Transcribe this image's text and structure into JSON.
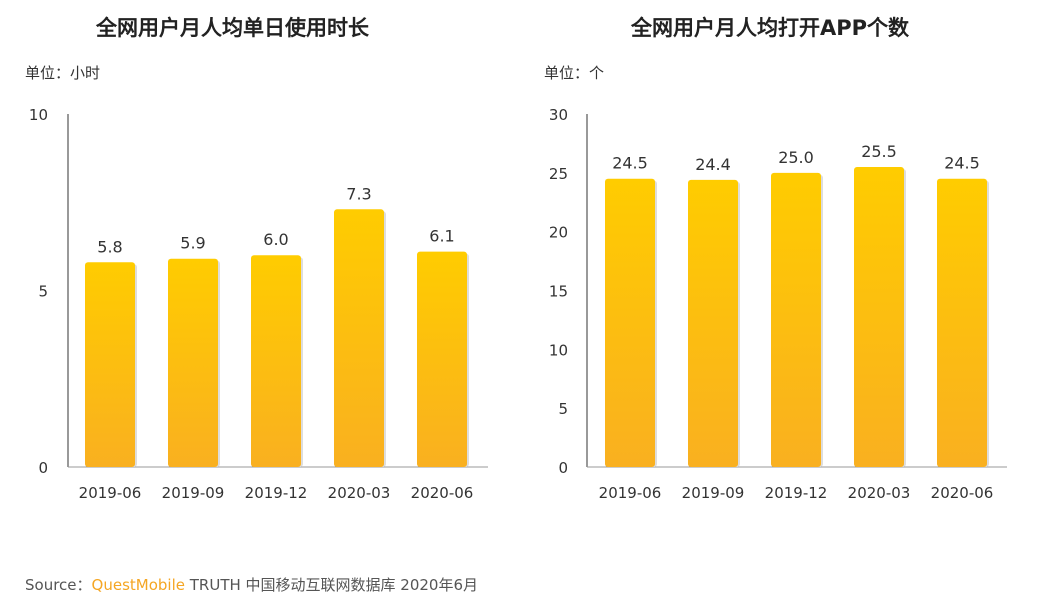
{
  "chart_data": [
    {
      "type": "bar",
      "title": "全网用户月人均单日使用时长",
      "unit": "单位：小时",
      "categories": [
        "2019-06",
        "2019-09",
        "2019-12",
        "2020-03",
        "2020-06"
      ],
      "values": [
        5.8,
        5.9,
        6.0,
        7.3,
        6.1
      ],
      "labels": [
        "5.8",
        "5.9",
        "6.0",
        "7.3",
        "6.1"
      ],
      "ylim": [
        0,
        10
      ],
      "yticks": [
        0,
        5,
        10
      ],
      "bar_color": [
        "#FFCC00",
        "#F9B020"
      ]
    },
    {
      "type": "bar",
      "title": "全网用户月人均打开APP个数",
      "unit": "单位：个",
      "categories": [
        "2019-06",
        "2019-09",
        "2019-12",
        "2020-03",
        "2020-06"
      ],
      "values": [
        24.5,
        24.4,
        25.0,
        25.5,
        24.5
      ],
      "labels": [
        "24.5",
        "24.4",
        "25.0",
        "25.5",
        "24.5"
      ],
      "ylim": [
        0,
        30
      ],
      "yticks": [
        0,
        5,
        10,
        15,
        20,
        25,
        30
      ],
      "bar_color": [
        "#FFCC00",
        "#F9B020"
      ]
    }
  ],
  "footer": {
    "prefix": "Source：",
    "brand": "QuestMobile",
    "rest": " TRUTH 中国移动互联网数据库 2020年6月"
  }
}
